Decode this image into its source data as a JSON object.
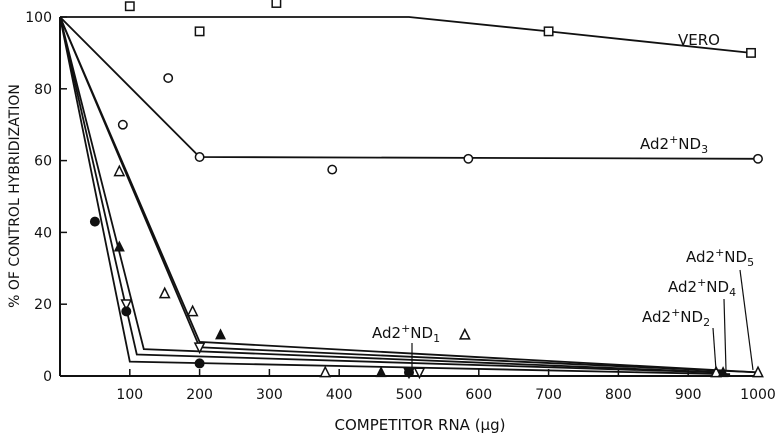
{
  "chart_data": {
    "type": "line",
    "title": "",
    "xlabel": "COMPETITOR RNA (μg)",
    "ylabel": "% OF CONTROL HYBRIDIZATION",
    "xlim": [
      0,
      1000
    ],
    "ylim": [
      0,
      100
    ],
    "xticks": [
      "100",
      "200",
      "300",
      "400",
      "500",
      "600",
      "700",
      "800",
      "900",
      "1000"
    ],
    "yticks": [
      "0",
      "20",
      "40",
      "60",
      "80",
      "100"
    ],
    "grid": false,
    "legend": "none (series labeled directly on the plot)",
    "series": [
      {
        "name": "VERO",
        "marker": "square-open",
        "fit": [
          [
            0,
            100
          ],
          [
            500,
            100
          ],
          [
            700,
            96
          ],
          [
            990,
            90
          ]
        ],
        "points": [
          [
            100,
            103
          ],
          [
            200,
            96
          ],
          [
            310,
            104
          ],
          [
            700,
            96
          ],
          [
            990,
            90
          ]
        ]
      },
      {
        "name": "Ad2+ND3",
        "marker": "circle-open",
        "fit": [
          [
            0,
            100
          ],
          [
            200,
            61
          ],
          [
            1000,
            60.5
          ]
        ],
        "points": [
          [
            90,
            70
          ],
          [
            155,
            83
          ],
          [
            200,
            61
          ],
          [
            390,
            57.5
          ],
          [
            585,
            60.5
          ],
          [
            1000,
            60.5
          ]
        ]
      },
      {
        "name": "Ad2+ND1",
        "marker": "triangle-down-open",
        "fit": [
          [
            0,
            100
          ],
          [
            200,
            8
          ],
          [
            1000,
            1
          ]
        ],
        "points": [
          [
            95,
            20
          ],
          [
            200,
            8
          ],
          [
            500,
            1
          ],
          [
            515,
            1
          ]
        ]
      },
      {
        "name": "Ad2+ND2",
        "marker": "triangle-open",
        "fit": [
          [
            0,
            100
          ],
          [
            110,
            6
          ],
          [
            940,
            1
          ]
        ],
        "points": [
          [
            85,
            57
          ],
          [
            150,
            23
          ],
          [
            190,
            18
          ],
          [
            380,
            1
          ],
          [
            580,
            11.5
          ],
          [
            940,
            1
          ]
        ]
      },
      {
        "name": "Ad2+ND4",
        "marker": "triangle-filled",
        "fit": [
          [
            0,
            100
          ],
          [
            120,
            7.5
          ],
          [
            950,
            1
          ]
        ],
        "points": [
          [
            85,
            36
          ],
          [
            230,
            11.5
          ],
          [
            460,
            1
          ],
          [
            950,
            1
          ]
        ]
      },
      {
        "name": "Ad2+ND5",
        "marker": "triangle-open",
        "fit": [
          [
            0,
            100
          ],
          [
            200,
            9.5
          ],
          [
            1000,
            1
          ]
        ],
        "points": [
          [
            1000,
            1
          ]
        ]
      },
      {
        "name": "",
        "marker": "circle-filled",
        "fit": [
          [
            0,
            100
          ],
          [
            100,
            4
          ],
          [
            960,
            0.5
          ]
        ],
        "points": [
          [
            50,
            43
          ],
          [
            95,
            18
          ],
          [
            200,
            3.5
          ],
          [
            500,
            1
          ]
        ]
      }
    ],
    "annotations": [
      "VERO",
      "Ad2+ND3",
      "Ad2+ND1",
      "Ad2+ND2",
      "Ad2+ND4",
      "Ad2+ND5"
    ]
  }
}
